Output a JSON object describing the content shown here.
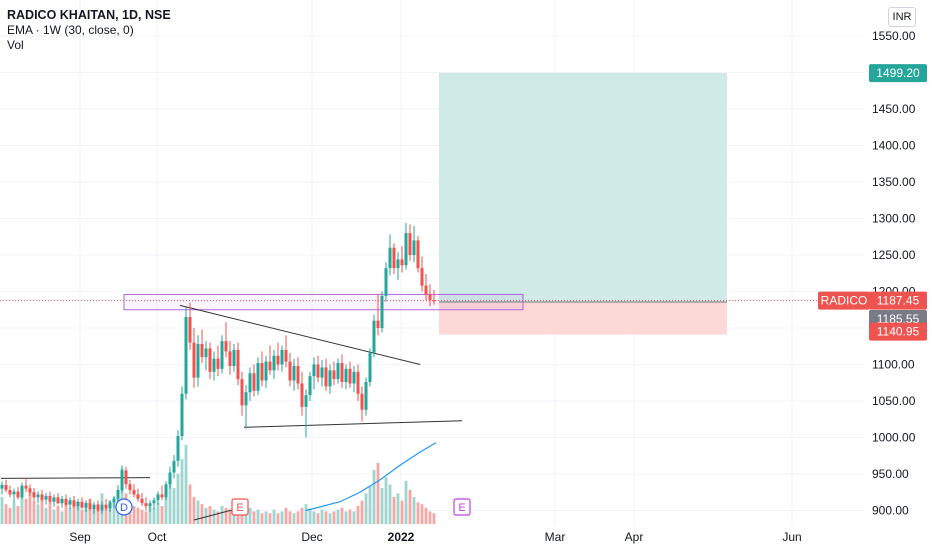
{
  "header": {
    "title": "RADICO KHAITAN, 1D, NSE",
    "indicator": "EMA · 1W (30, close, 0)",
    "volume_label": "Vol",
    "currency": "INR"
  },
  "colors": {
    "up": "#26a69a",
    "down": "#ef5350",
    "up_vol": "#9fd4cf",
    "down_vol": "#f3a8a6",
    "target_zone": "#cfeae7",
    "stop_zone": "#fcd9d7",
    "ema": "#2196f3",
    "zone_box": "#b266e0",
    "grid": "#f0f3fa",
    "axis_text": "#131722"
  },
  "chart_data": {
    "type": "candlestick",
    "symbol": "RADICO",
    "y_axis": {
      "ticks": [
        "1550.00",
        "1500.00",
        "1450.00",
        "1400.00",
        "1350.00",
        "1300.00",
        "1250.00",
        "1200.00",
        "1150.00",
        "1100.00",
        "1050.00",
        "1000.00",
        "950.00",
        "900.00"
      ],
      "range": [
        893,
        1558
      ]
    },
    "x_axis": {
      "ticks": [
        "Sep",
        "Oct",
        "Dec",
        "2022",
        "Mar",
        "Apr",
        "Jun"
      ]
    },
    "price_labels": {
      "target": "1499.20",
      "symbol_label": "RADICO",
      "last": "1187.45",
      "entry": "1185.55",
      "stop": "1140.95"
    },
    "position": {
      "entry": 1185.55,
      "target": 1499.2,
      "stop": 1140.95
    },
    "event_markers": [
      {
        "letter": "D",
        "kind": "dividend"
      },
      {
        "letter": "E",
        "kind": "earnings"
      },
      {
        "letter": "E",
        "kind": "earnings-upcoming"
      }
    ],
    "resistance_zone": [
      1175,
      1196
    ],
    "trendlines": [
      {
        "from": [
          1,
          944
        ],
        "to": [
          150,
          945
        ]
      },
      {
        "from": [
          180,
          1181
        ],
        "to": [
          420,
          1100
        ]
      },
      {
        "from": [
          244,
          1014
        ],
        "to": [
          462,
          1023
        ]
      }
    ],
    "ema": [
      [
        306,
        900
      ],
      [
        340,
        912
      ],
      [
        360,
        925
      ],
      [
        380,
        942
      ],
      [
        400,
        962
      ],
      [
        420,
        980
      ],
      [
        436,
        993
      ]
    ],
    "candles": [
      {
        "x": 2,
        "o": 930,
        "h": 940,
        "l": 922,
        "c": 935
      },
      {
        "x": 6,
        "o": 935,
        "h": 942,
        "l": 925,
        "c": 928
      },
      {
        "x": 10,
        "o": 928,
        "h": 934,
        "l": 918,
        "c": 922
      },
      {
        "x": 14,
        "o": 922,
        "h": 930,
        "l": 912,
        "c": 926
      },
      {
        "x": 18,
        "o": 926,
        "h": 932,
        "l": 915,
        "c": 918
      },
      {
        "x": 22,
        "o": 918,
        "h": 938,
        "l": 916,
        "c": 934
      },
      {
        "x": 26,
        "o": 934,
        "h": 944,
        "l": 925,
        "c": 930
      },
      {
        "x": 30,
        "o": 930,
        "h": 936,
        "l": 920,
        "c": 925
      },
      {
        "x": 34,
        "o": 925,
        "h": 931,
        "l": 914,
        "c": 918
      },
      {
        "x": 38,
        "o": 918,
        "h": 926,
        "l": 910,
        "c": 922
      },
      {
        "x": 42,
        "o": 922,
        "h": 928,
        "l": 912,
        "c": 915
      },
      {
        "x": 46,
        "o": 915,
        "h": 924,
        "l": 908,
        "c": 920
      },
      {
        "x": 50,
        "o": 920,
        "h": 926,
        "l": 910,
        "c": 912
      },
      {
        "x": 54,
        "o": 912,
        "h": 922,
        "l": 905,
        "c": 918
      },
      {
        "x": 58,
        "o": 918,
        "h": 924,
        "l": 908,
        "c": 910
      },
      {
        "x": 62,
        "o": 910,
        "h": 920,
        "l": 904,
        "c": 916
      },
      {
        "x": 66,
        "o": 916,
        "h": 922,
        "l": 906,
        "c": 908
      },
      {
        "x": 70,
        "o": 908,
        "h": 918,
        "l": 902,
        "c": 914
      },
      {
        "x": 74,
        "o": 914,
        "h": 920,
        "l": 904,
        "c": 906
      },
      {
        "x": 78,
        "o": 906,
        "h": 916,
        "l": 900,
        "c": 912
      },
      {
        "x": 82,
        "o": 912,
        "h": 918,
        "l": 902,
        "c": 904
      },
      {
        "x": 86,
        "o": 904,
        "h": 914,
        "l": 898,
        "c": 910
      },
      {
        "x": 90,
        "o": 910,
        "h": 916,
        "l": 900,
        "c": 902
      },
      {
        "x": 94,
        "o": 902,
        "h": 912,
        "l": 896,
        "c": 908
      },
      {
        "x": 98,
        "o": 908,
        "h": 914,
        "l": 898,
        "c": 900
      },
      {
        "x": 102,
        "o": 900,
        "h": 912,
        "l": 896,
        "c": 908
      },
      {
        "x": 106,
        "o": 908,
        "h": 916,
        "l": 900,
        "c": 903
      },
      {
        "x": 110,
        "o": 903,
        "h": 914,
        "l": 898,
        "c": 911
      },
      {
        "x": 114,
        "o": 911,
        "h": 920,
        "l": 904,
        "c": 916
      },
      {
        "x": 118,
        "o": 916,
        "h": 935,
        "l": 910,
        "c": 928
      },
      {
        "x": 122,
        "o": 928,
        "h": 962,
        "l": 924,
        "c": 955
      },
      {
        "x": 126,
        "o": 955,
        "h": 960,
        "l": 930,
        "c": 936
      },
      {
        "x": 130,
        "o": 936,
        "h": 942,
        "l": 922,
        "c": 928
      },
      {
        "x": 134,
        "o": 928,
        "h": 936,
        "l": 918,
        "c": 922
      },
      {
        "x": 138,
        "o": 922,
        "h": 930,
        "l": 912,
        "c": 916
      },
      {
        "x": 142,
        "o": 916,
        "h": 924,
        "l": 906,
        "c": 910
      },
      {
        "x": 146,
        "o": 910,
        "h": 918,
        "l": 900,
        "c": 906
      },
      {
        "x": 150,
        "o": 906,
        "h": 914,
        "l": 898,
        "c": 910
      },
      {
        "x": 154,
        "o": 910,
        "h": 918,
        "l": 902,
        "c": 914
      },
      {
        "x": 158,
        "o": 914,
        "h": 926,
        "l": 908,
        "c": 922
      },
      {
        "x": 162,
        "o": 922,
        "h": 934,
        "l": 914,
        "c": 918
      },
      {
        "x": 166,
        "o": 918,
        "h": 940,
        "l": 914,
        "c": 936
      },
      {
        "x": 170,
        "o": 936,
        "h": 960,
        "l": 930,
        "c": 952
      },
      {
        "x": 174,
        "o": 952,
        "h": 976,
        "l": 944,
        "c": 968
      },
      {
        "x": 178,
        "o": 968,
        "h": 1010,
        "l": 960,
        "c": 1002
      },
      {
        "x": 182,
        "o": 1002,
        "h": 1070,
        "l": 996,
        "c": 1060
      },
      {
        "x": 186,
        "o": 1060,
        "h": 1178,
        "l": 1052,
        "c": 1165
      },
      {
        "x": 190,
        "o": 1165,
        "h": 1185,
        "l": 1120,
        "c": 1130
      },
      {
        "x": 194,
        "o": 1130,
        "h": 1150,
        "l": 1068,
        "c": 1082
      },
      {
        "x": 198,
        "o": 1082,
        "h": 1140,
        "l": 1070,
        "c": 1128
      },
      {
        "x": 202,
        "o": 1128,
        "h": 1148,
        "l": 1102,
        "c": 1110
      },
      {
        "x": 206,
        "o": 1110,
        "h": 1132,
        "l": 1092,
        "c": 1122
      },
      {
        "x": 210,
        "o": 1122,
        "h": 1130,
        "l": 1080,
        "c": 1090
      },
      {
        "x": 214,
        "o": 1090,
        "h": 1118,
        "l": 1078,
        "c": 1108
      },
      {
        "x": 218,
        "o": 1108,
        "h": 1126,
        "l": 1084,
        "c": 1094
      },
      {
        "x": 222,
        "o": 1094,
        "h": 1140,
        "l": 1088,
        "c": 1132
      },
      {
        "x": 226,
        "o": 1132,
        "h": 1158,
        "l": 1110,
        "c": 1118
      },
      {
        "x": 230,
        "o": 1118,
        "h": 1132,
        "l": 1086,
        "c": 1098
      },
      {
        "x": 234,
        "o": 1098,
        "h": 1128,
        "l": 1090,
        "c": 1120
      },
      {
        "x": 238,
        "o": 1120,
        "h": 1130,
        "l": 1072,
        "c": 1080
      },
      {
        "x": 242,
        "o": 1080,
        "h": 1090,
        "l": 1030,
        "c": 1044
      },
      {
        "x": 246,
        "o": 1044,
        "h": 1072,
        "l": 1012,
        "c": 1062
      },
      {
        "x": 250,
        "o": 1062,
        "h": 1096,
        "l": 1050,
        "c": 1088
      },
      {
        "x": 254,
        "o": 1088,
        "h": 1100,
        "l": 1056,
        "c": 1064
      },
      {
        "x": 258,
        "o": 1064,
        "h": 1110,
        "l": 1058,
        "c": 1102
      },
      {
        "x": 262,
        "o": 1102,
        "h": 1118,
        "l": 1070,
        "c": 1078
      },
      {
        "x": 266,
        "o": 1078,
        "h": 1112,
        "l": 1068,
        "c": 1104
      },
      {
        "x": 270,
        "o": 1104,
        "h": 1126,
        "l": 1086,
        "c": 1092
      },
      {
        "x": 274,
        "o": 1092,
        "h": 1120,
        "l": 1080,
        "c": 1112
      },
      {
        "x": 278,
        "o": 1112,
        "h": 1130,
        "l": 1092,
        "c": 1100
      },
      {
        "x": 282,
        "o": 1100,
        "h": 1126,
        "l": 1090,
        "c": 1120
      },
      {
        "x": 286,
        "o": 1120,
        "h": 1140,
        "l": 1096,
        "c": 1104
      },
      {
        "x": 290,
        "o": 1104,
        "h": 1116,
        "l": 1070,
        "c": 1078
      },
      {
        "x": 294,
        "o": 1078,
        "h": 1108,
        "l": 1064,
        "c": 1098
      },
      {
        "x": 298,
        "o": 1098,
        "h": 1110,
        "l": 1066,
        "c": 1074
      },
      {
        "x": 302,
        "o": 1074,
        "h": 1090,
        "l": 1030,
        "c": 1042
      },
      {
        "x": 306,
        "o": 1042,
        "h": 1066,
        "l": 1000,
        "c": 1058
      },
      {
        "x": 310,
        "o": 1058,
        "h": 1090,
        "l": 1050,
        "c": 1084
      },
      {
        "x": 314,
        "o": 1084,
        "h": 1110,
        "l": 1066,
        "c": 1100
      },
      {
        "x": 318,
        "o": 1100,
        "h": 1112,
        "l": 1076,
        "c": 1082
      },
      {
        "x": 322,
        "o": 1082,
        "h": 1106,
        "l": 1070,
        "c": 1096
      },
      {
        "x": 326,
        "o": 1096,
        "h": 1108,
        "l": 1064,
        "c": 1070
      },
      {
        "x": 330,
        "o": 1070,
        "h": 1100,
        "l": 1060,
        "c": 1092
      },
      {
        "x": 334,
        "o": 1092,
        "h": 1104,
        "l": 1072,
        "c": 1080
      },
      {
        "x": 338,
        "o": 1080,
        "h": 1108,
        "l": 1074,
        "c": 1102
      },
      {
        "x": 342,
        "o": 1102,
        "h": 1114,
        "l": 1068,
        "c": 1076
      },
      {
        "x": 346,
        "o": 1076,
        "h": 1100,
        "l": 1066,
        "c": 1094
      },
      {
        "x": 350,
        "o": 1094,
        "h": 1104,
        "l": 1068,
        "c": 1074
      },
      {
        "x": 354,
        "o": 1074,
        "h": 1098,
        "l": 1062,
        "c": 1090
      },
      {
        "x": 358,
        "o": 1090,
        "h": 1100,
        "l": 1050,
        "c": 1060
      },
      {
        "x": 362,
        "o": 1060,
        "h": 1070,
        "l": 1022,
        "c": 1038
      },
      {
        "x": 366,
        "o": 1038,
        "h": 1082,
        "l": 1030,
        "c": 1076
      },
      {
        "x": 370,
        "o": 1076,
        "h": 1122,
        "l": 1070,
        "c": 1116
      },
      {
        "x": 374,
        "o": 1116,
        "h": 1168,
        "l": 1110,
        "c": 1160
      },
      {
        "x": 378,
        "o": 1160,
        "h": 1196,
        "l": 1140,
        "c": 1150
      },
      {
        "x": 382,
        "o": 1150,
        "h": 1200,
        "l": 1144,
        "c": 1194
      },
      {
        "x": 386,
        "o": 1194,
        "h": 1240,
        "l": 1186,
        "c": 1232
      },
      {
        "x": 390,
        "o": 1232,
        "h": 1278,
        "l": 1222,
        "c": 1260
      },
      {
        "x": 394,
        "o": 1260,
        "h": 1266,
        "l": 1224,
        "c": 1232
      },
      {
        "x": 398,
        "o": 1232,
        "h": 1254,
        "l": 1216,
        "c": 1244
      },
      {
        "x": 402,
        "o": 1244,
        "h": 1262,
        "l": 1226,
        "c": 1236
      },
      {
        "x": 406,
        "o": 1236,
        "h": 1294,
        "l": 1230,
        "c": 1280
      },
      {
        "x": 410,
        "o": 1280,
        "h": 1292,
        "l": 1242,
        "c": 1250
      },
      {
        "x": 414,
        "o": 1250,
        "h": 1290,
        "l": 1240,
        "c": 1270
      },
      {
        "x": 418,
        "o": 1270,
        "h": 1276,
        "l": 1226,
        "c": 1232
      },
      {
        "x": 422,
        "o": 1232,
        "h": 1248,
        "l": 1200,
        "c": 1208
      },
      {
        "x": 426,
        "o": 1208,
        "h": 1224,
        "l": 1188,
        "c": 1196
      },
      {
        "x": 430,
        "o": 1196,
        "h": 1210,
        "l": 1180,
        "c": 1188
      },
      {
        "x": 434,
        "o": 1188,
        "h": 1202,
        "l": 1182,
        "c": 1187
      }
    ],
    "volume": [
      {
        "x": 2,
        "v": 30
      },
      {
        "x": 6,
        "v": 22
      },
      {
        "x": 10,
        "v": 18
      },
      {
        "x": 14,
        "v": 25
      },
      {
        "x": 18,
        "v": 20
      },
      {
        "x": 22,
        "v": 35
      },
      {
        "x": 26,
        "v": 28
      },
      {
        "x": 30,
        "v": 40
      },
      {
        "x": 34,
        "v": 26
      },
      {
        "x": 38,
        "v": 22
      },
      {
        "x": 42,
        "v": 30
      },
      {
        "x": 46,
        "v": 18
      },
      {
        "x": 50,
        "v": 24
      },
      {
        "x": 54,
        "v": 16
      },
      {
        "x": 58,
        "v": 20
      },
      {
        "x": 62,
        "v": 14
      },
      {
        "x": 66,
        "v": 22
      },
      {
        "x": 70,
        "v": 18
      },
      {
        "x": 74,
        "v": 26
      },
      {
        "x": 78,
        "v": 20
      },
      {
        "x": 82,
        "v": 16
      },
      {
        "x": 86,
        "v": 24
      },
      {
        "x": 90,
        "v": 28
      },
      {
        "x": 94,
        "v": 20
      },
      {
        "x": 98,
        "v": 22
      },
      {
        "x": 102,
        "v": 34
      },
      {
        "x": 106,
        "v": 18
      },
      {
        "x": 110,
        "v": 26
      },
      {
        "x": 114,
        "v": 30
      },
      {
        "x": 118,
        "v": 38
      },
      {
        "x": 122,
        "v": 62
      },
      {
        "x": 126,
        "v": 34
      },
      {
        "x": 130,
        "v": 22
      },
      {
        "x": 134,
        "v": 20
      },
      {
        "x": 138,
        "v": 18
      },
      {
        "x": 142,
        "v": 16
      },
      {
        "x": 146,
        "v": 14
      },
      {
        "x": 150,
        "v": 20
      },
      {
        "x": 154,
        "v": 18
      },
      {
        "x": 158,
        "v": 24
      },
      {
        "x": 162,
        "v": 20
      },
      {
        "x": 166,
        "v": 30
      },
      {
        "x": 170,
        "v": 48
      },
      {
        "x": 174,
        "v": 40
      },
      {
        "x": 178,
        "v": 56
      },
      {
        "x": 182,
        "v": 72
      },
      {
        "x": 186,
        "v": 88
      },
      {
        "x": 190,
        "v": 44
      },
      {
        "x": 194,
        "v": 30
      },
      {
        "x": 198,
        "v": 26
      },
      {
        "x": 202,
        "v": 22
      },
      {
        "x": 206,
        "v": 18
      },
      {
        "x": 210,
        "v": 20
      },
      {
        "x": 214,
        "v": 16
      },
      {
        "x": 218,
        "v": 14
      },
      {
        "x": 222,
        "v": 20
      },
      {
        "x": 226,
        "v": 18
      },
      {
        "x": 230,
        "v": 16
      },
      {
        "x": 234,
        "v": 14
      },
      {
        "x": 238,
        "v": 18
      },
      {
        "x": 242,
        "v": 22
      },
      {
        "x": 246,
        "v": 26
      },
      {
        "x": 250,
        "v": 18
      },
      {
        "x": 254,
        "v": 14
      },
      {
        "x": 258,
        "v": 16
      },
      {
        "x": 262,
        "v": 12
      },
      {
        "x": 266,
        "v": 14
      },
      {
        "x": 270,
        "v": 12
      },
      {
        "x": 274,
        "v": 16
      },
      {
        "x": 278,
        "v": 12
      },
      {
        "x": 282,
        "v": 14
      },
      {
        "x": 286,
        "v": 18
      },
      {
        "x": 290,
        "v": 14
      },
      {
        "x": 294,
        "v": 12
      },
      {
        "x": 298,
        "v": 14
      },
      {
        "x": 302,
        "v": 18
      },
      {
        "x": 306,
        "v": 22
      },
      {
        "x": 310,
        "v": 16
      },
      {
        "x": 314,
        "v": 14
      },
      {
        "x": 318,
        "v": 12
      },
      {
        "x": 322,
        "v": 16
      },
      {
        "x": 326,
        "v": 14
      },
      {
        "x": 330,
        "v": 12
      },
      {
        "x": 334,
        "v": 14
      },
      {
        "x": 338,
        "v": 16
      },
      {
        "x": 342,
        "v": 18
      },
      {
        "x": 346,
        "v": 14
      },
      {
        "x": 350,
        "v": 16
      },
      {
        "x": 354,
        "v": 14
      },
      {
        "x": 358,
        "v": 20
      },
      {
        "x": 362,
        "v": 26
      },
      {
        "x": 366,
        "v": 34
      },
      {
        "x": 370,
        "v": 42
      },
      {
        "x": 374,
        "v": 60
      },
      {
        "x": 378,
        "v": 68
      },
      {
        "x": 382,
        "v": 40
      },
      {
        "x": 386,
        "v": 52
      },
      {
        "x": 390,
        "v": 44
      },
      {
        "x": 394,
        "v": 30
      },
      {
        "x": 398,
        "v": 34
      },
      {
        "x": 402,
        "v": 26
      },
      {
        "x": 406,
        "v": 48
      },
      {
        "x": 410,
        "v": 38
      },
      {
        "x": 414,
        "v": 30
      },
      {
        "x": 418,
        "v": 24
      },
      {
        "x": 422,
        "v": 22
      },
      {
        "x": 426,
        "v": 18
      },
      {
        "x": 430,
        "v": 14
      },
      {
        "x": 434,
        "v": 12
      }
    ]
  }
}
